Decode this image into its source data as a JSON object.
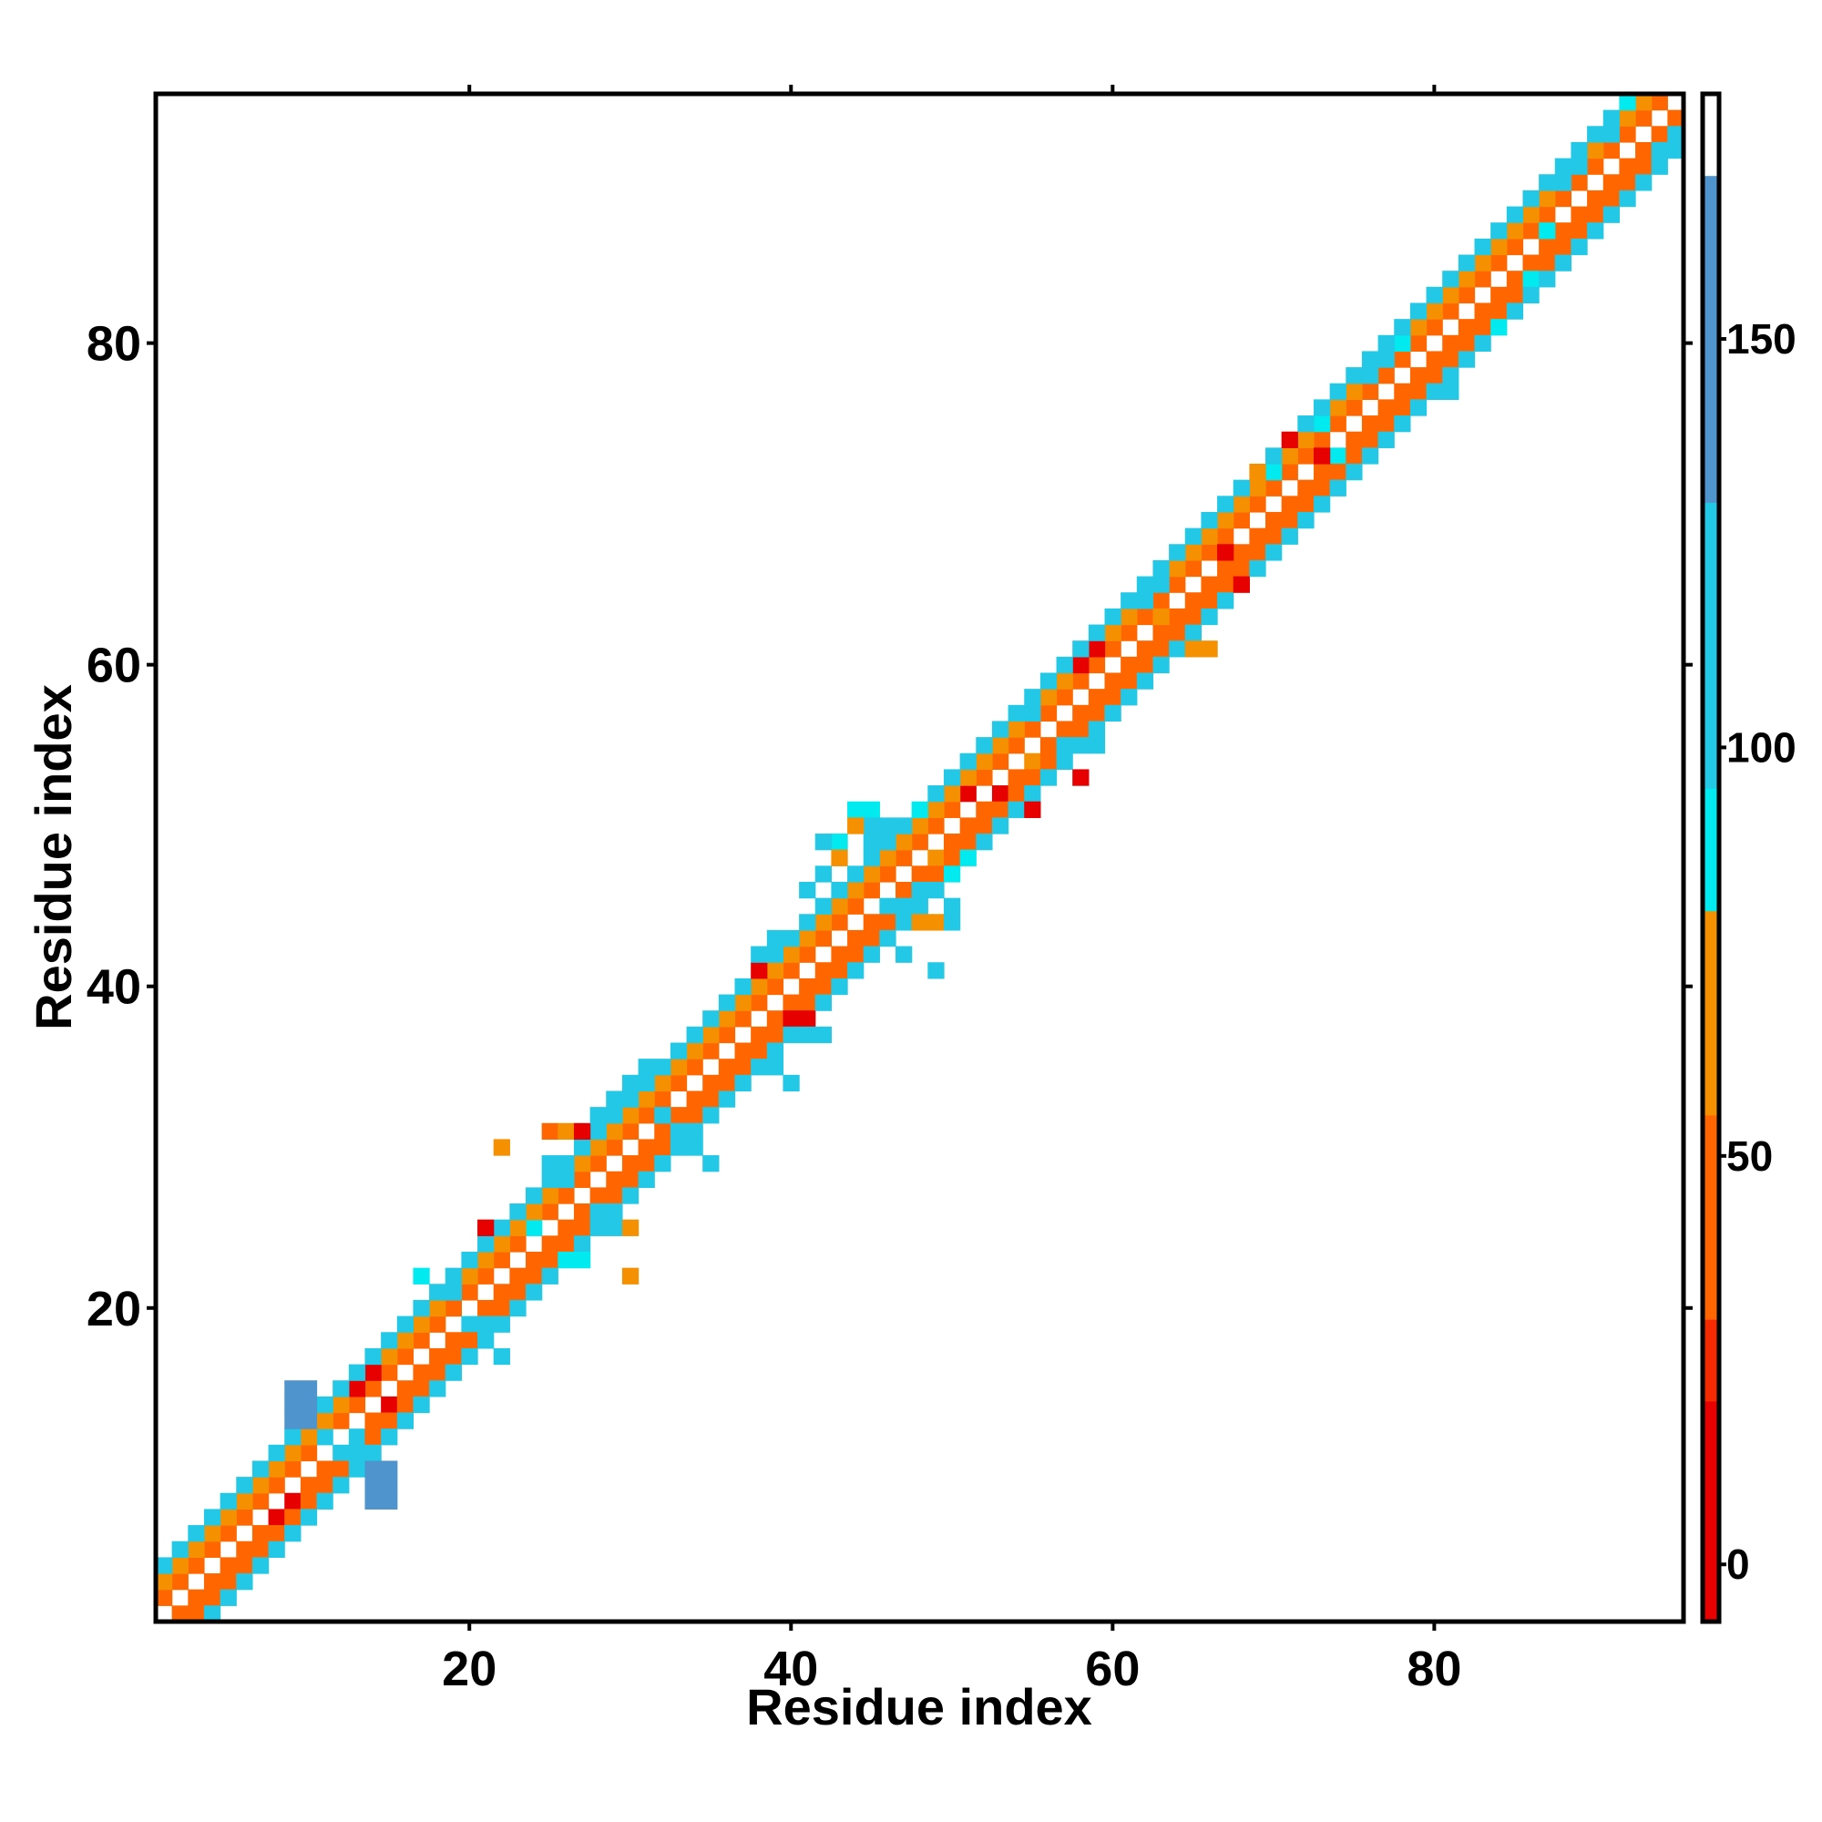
{
  "chart_data": {
    "type": "heatmap",
    "title": "",
    "xlabel": "Residue index",
    "ylabel": "Residue index",
    "xlim": [
      0.5,
      95.5
    ],
    "ylim": [
      0.5,
      95.5
    ],
    "x_ticks": [
      20,
      40,
      60,
      80
    ],
    "y_ticks": [
      20,
      40,
      60,
      80
    ],
    "grid": false,
    "legend": "none",
    "colorbar": {
      "placement": "right",
      "range": [
        -7,
        180
      ],
      "ticks": [
        0,
        50,
        100,
        150
      ],
      "colors": [
        {
          "from": -7,
          "to": 20,
          "color": "#e60000"
        },
        {
          "from": 20,
          "to": 30,
          "color": "#f52a00"
        },
        {
          "from": 30,
          "to": 55,
          "color": "#ff6600"
        },
        {
          "from": 55,
          "to": 80,
          "color": "#f59000"
        },
        {
          "from": 80,
          "to": 95,
          "color": "#00eaf0"
        },
        {
          "from": 95,
          "to": 130,
          "color": "#22c8e6"
        },
        {
          "from": 130,
          "to": 170,
          "color": "#4f94cd"
        },
        {
          "from": 170,
          "to": 180,
          "color": "#ffffff"
        }
      ]
    },
    "values_note_generated_by": "diagonal bands",
    "diagonal_bands": [
      {
        "offset": 1,
        "value": 45
      },
      {
        "offset": 2,
        "value": 45
      },
      {
        "offset": 3,
        "value": 100
      }
    ],
    "extra_cells": [
      {
        "x": 9,
        "y": 15,
        "v": 160
      },
      {
        "x": 10,
        "y": 15,
        "v": 160
      },
      {
        "x": 9,
        "y": 14,
        "v": 160
      },
      {
        "x": 10,
        "y": 14,
        "v": 160
      },
      {
        "x": 9,
        "y": 13,
        "v": 160
      },
      {
        "x": 10,
        "y": 13,
        "v": 160
      },
      {
        "x": 14,
        "y": 10,
        "v": 160
      },
      {
        "x": 15,
        "y": 10,
        "v": 160
      },
      {
        "x": 14,
        "y": 9,
        "v": 160
      },
      {
        "x": 15,
        "y": 9,
        "v": 160
      },
      {
        "x": 14,
        "y": 8,
        "v": 160
      },
      {
        "x": 15,
        "y": 8,
        "v": 160
      },
      {
        "x": 12,
        "y": 11,
        "v": 110
      },
      {
        "x": 13,
        "y": 12,
        "v": 110
      },
      {
        "x": 11,
        "y": 12,
        "v": 110
      },
      {
        "x": 13,
        "y": 11,
        "v": 110
      },
      {
        "x": 8,
        "y": 7,
        "v": 10
      },
      {
        "x": 9,
        "y": 8,
        "v": 10
      },
      {
        "x": 13,
        "y": 15,
        "v": 10
      },
      {
        "x": 14,
        "y": 16,
        "v": 10
      },
      {
        "x": 15,
        "y": 14,
        "v": 10
      },
      {
        "x": 17,
        "y": 22,
        "v": 90
      },
      {
        "x": 18,
        "y": 21,
        "v": 110
      },
      {
        "x": 19,
        "y": 21,
        "v": 110
      },
      {
        "x": 20,
        "y": 19,
        "v": 110
      },
      {
        "x": 21,
        "y": 19,
        "v": 110
      },
      {
        "x": 21,
        "y": 18,
        "v": 130
      },
      {
        "x": 22,
        "y": 17,
        "v": 100
      },
      {
        "x": 21,
        "y": 25,
        "v": 20
      },
      {
        "x": 22,
        "y": 30,
        "v": 65
      },
      {
        "x": 24,
        "y": 25,
        "v": 90
      },
      {
        "x": 26,
        "y": 23,
        "v": 90
      },
      {
        "x": 27,
        "y": 23,
        "v": 90
      },
      {
        "x": 25,
        "y": 29,
        "v": 110
      },
      {
        "x": 26,
        "y": 29,
        "v": 110
      },
      {
        "x": 25,
        "y": 28,
        "v": 110
      },
      {
        "x": 26,
        "y": 28,
        "v": 110
      },
      {
        "x": 28,
        "y": 26,
        "v": 110
      },
      {
        "x": 29,
        "y": 26,
        "v": 110
      },
      {
        "x": 29,
        "y": 25,
        "v": 110
      },
      {
        "x": 25,
        "y": 31,
        "v": 50
      },
      {
        "x": 26,
        "y": 31,
        "v": 65
      },
      {
        "x": 27,
        "y": 31,
        "v": 20
      },
      {
        "x": 30,
        "y": 25,
        "v": 65
      },
      {
        "x": 30,
        "y": 22,
        "v": 65
      },
      {
        "x": 28,
        "y": 32,
        "v": 110
      },
      {
        "x": 29,
        "y": 33,
        "v": 110
      },
      {
        "x": 30,
        "y": 34,
        "v": 110
      },
      {
        "x": 31,
        "y": 35,
        "v": 110
      },
      {
        "x": 32,
        "y": 32,
        "v": 110
      },
      {
        "x": 33,
        "y": 31,
        "v": 110
      },
      {
        "x": 34,
        "y": 30,
        "v": 110
      },
      {
        "x": 35,
        "y": 29,
        "v": 110
      },
      {
        "x": 35,
        "y": 38,
        "v": 110
      },
      {
        "x": 36,
        "y": 39,
        "v": 110
      },
      {
        "x": 37,
        "y": 40,
        "v": 110
      },
      {
        "x": 38,
        "y": 42,
        "v": 110
      },
      {
        "x": 39,
        "y": 43,
        "v": 110
      },
      {
        "x": 40,
        "y": 43,
        "v": 110
      },
      {
        "x": 38,
        "y": 35,
        "v": 110
      },
      {
        "x": 39,
        "y": 35,
        "v": 110
      },
      {
        "x": 40,
        "y": 34,
        "v": 110
      },
      {
        "x": 41,
        "y": 37,
        "v": 110
      },
      {
        "x": 42,
        "y": 37,
        "v": 110
      },
      {
        "x": 43,
        "y": 40,
        "v": 110
      },
      {
        "x": 38,
        "y": 41,
        "v": 20
      },
      {
        "x": 40,
        "y": 38,
        "v": 20
      },
      {
        "x": 41,
        "y": 38,
        "v": 20
      },
      {
        "x": 41,
        "y": 46,
        "v": 110
      },
      {
        "x": 42,
        "y": 47,
        "v": 110
      },
      {
        "x": 43,
        "y": 49,
        "v": 90
      },
      {
        "x": 44,
        "y": 51,
        "v": 90
      },
      {
        "x": 45,
        "y": 51,
        "v": 90
      },
      {
        "x": 45,
        "y": 50,
        "v": 110
      },
      {
        "x": 45,
        "y": 49,
        "v": 110
      },
      {
        "x": 46,
        "y": 50,
        "v": 130
      },
      {
        "x": 46,
        "y": 49,
        "v": 110
      },
      {
        "x": 42,
        "y": 49,
        "v": 110
      },
      {
        "x": 44,
        "y": 50,
        "v": 65
      },
      {
        "x": 43,
        "y": 48,
        "v": 65
      },
      {
        "x": 46,
        "y": 45,
        "v": 110
      },
      {
        "x": 47,
        "y": 45,
        "v": 110
      },
      {
        "x": 48,
        "y": 46,
        "v": 130
      },
      {
        "x": 49,
        "y": 46,
        "v": 130
      },
      {
        "x": 48,
        "y": 44,
        "v": 65
      },
      {
        "x": 49,
        "y": 44,
        "v": 65
      },
      {
        "x": 50,
        "y": 45,
        "v": 110
      },
      {
        "x": 50,
        "y": 44,
        "v": 110
      },
      {
        "x": 50,
        "y": 47,
        "v": 90
      },
      {
        "x": 49,
        "y": 41,
        "v": 110
      },
      {
        "x": 47,
        "y": 42,
        "v": 110
      },
      {
        "x": 49,
        "y": 48,
        "v": 65
      },
      {
        "x": 51,
        "y": 48,
        "v": 90
      },
      {
        "x": 48,
        "y": 51,
        "v": 90
      },
      {
        "x": 51,
        "y": 52,
        "v": 20
      },
      {
        "x": 53,
        "y": 52,
        "v": 20
      },
      {
        "x": 55,
        "y": 51,
        "v": 20
      },
      {
        "x": 55,
        "y": 54,
        "v": 65
      },
      {
        "x": 58,
        "y": 53,
        "v": 20
      },
      {
        "x": 58,
        "y": 60,
        "v": 20
      },
      {
        "x": 59,
        "y": 61,
        "v": 20
      },
      {
        "x": 55,
        "y": 57,
        "v": 110
      },
      {
        "x": 57,
        "y": 55,
        "v": 110
      },
      {
        "x": 59,
        "y": 55,
        "v": 110
      },
      {
        "x": 62,
        "y": 59,
        "v": 110
      },
      {
        "x": 63,
        "y": 60,
        "v": 110
      },
      {
        "x": 62,
        "y": 64,
        "v": 110
      },
      {
        "x": 63,
        "y": 65,
        "v": 110
      },
      {
        "x": 63,
        "y": 63,
        "v": 65
      },
      {
        "x": 65,
        "y": 61,
        "v": 65
      },
      {
        "x": 66,
        "y": 61,
        "v": 65
      },
      {
        "x": 68,
        "y": 65,
        "v": 20
      },
      {
        "x": 67,
        "y": 67,
        "v": 20
      },
      {
        "x": 69,
        "y": 72,
        "v": 65
      },
      {
        "x": 70,
        "y": 72,
        "v": 90
      },
      {
        "x": 73,
        "y": 75,
        "v": 90
      },
      {
        "x": 74,
        "y": 73,
        "v": 90
      },
      {
        "x": 73,
        "y": 73,
        "v": 20
      },
      {
        "x": 71,
        "y": 74,
        "v": 20
      },
      {
        "x": 76,
        "y": 78,
        "v": 110
      },
      {
        "x": 77,
        "y": 79,
        "v": 110
      },
      {
        "x": 78,
        "y": 80,
        "v": 90
      },
      {
        "x": 80,
        "y": 77,
        "v": 110
      },
      {
        "x": 81,
        "y": 77,
        "v": 110
      },
      {
        "x": 80,
        "y": 82,
        "v": 65
      },
      {
        "x": 81,
        "y": 83,
        "v": 65
      },
      {
        "x": 84,
        "y": 81,
        "v": 90
      },
      {
        "x": 83,
        "y": 85,
        "v": 65
      },
      {
        "x": 86,
        "y": 84,
        "v": 90
      },
      {
        "x": 87,
        "y": 87,
        "v": 90
      },
      {
        "x": 88,
        "y": 90,
        "v": 110
      },
      {
        "x": 89,
        "y": 91,
        "v": 110
      },
      {
        "x": 91,
        "y": 93,
        "v": 110
      },
      {
        "x": 92,
        "y": 95,
        "v": 90
      },
      {
        "x": 94,
        "y": 92,
        "v": 110
      },
      {
        "x": 95,
        "y": 93,
        "v": 110
      }
    ]
  }
}
